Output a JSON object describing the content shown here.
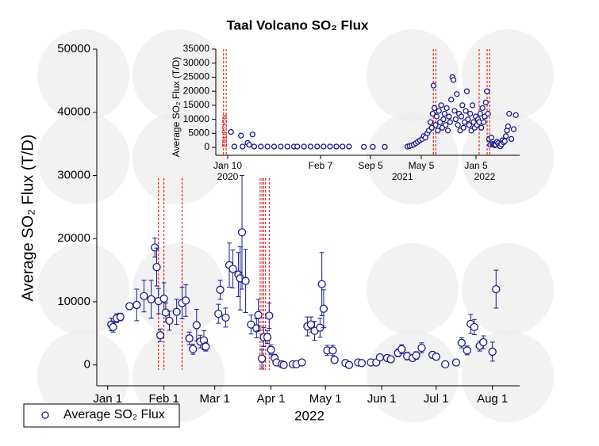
{
  "chart_data": [
    {
      "type": "scatter",
      "title": "Taal Volcano SO₂ Flux",
      "ylabel": "Average SO₂ Flux (T/D)",
      "xlabel": "2022",
      "x": [
        2,
        3,
        5,
        7,
        12,
        16,
        20,
        24,
        26,
        27,
        28,
        29,
        31,
        32,
        34,
        38,
        41,
        43,
        45,
        47,
        49,
        51,
        53,
        54,
        61,
        62,
        65,
        67,
        69,
        72,
        73,
        74,
        76,
        79,
        82,
        83,
        85,
        86,
        88,
        89,
        90,
        92,
        93,
        96,
        97,
        102,
        104,
        107,
        110,
        112,
        114,
        117,
        118,
        119,
        121,
        124,
        125,
        131,
        133,
        138,
        140,
        145,
        148,
        150,
        154,
        156,
        160,
        162,
        165,
        168,
        170,
        173,
        179,
        181,
        186,
        192,
        195,
        198,
        200,
        202,
        205,
        207,
        212,
        214
      ],
      "series": [
        {
          "name": "Average SO₂ Flux",
          "color": "#1a1a8c",
          "values": [
            6400,
            6000,
            7400,
            7600,
            9300,
            9500,
            10900,
            10400,
            18600,
            15500,
            10100,
            4700,
            10500,
            8300,
            7000,
            8400,
            9800,
            10200,
            4200,
            2500,
            6300,
            3700,
            3900,
            2900,
            8100,
            11900,
            7500,
            15800,
            15200,
            14300,
            13700,
            21000,
            13300,
            6400,
            5800,
            7900,
            1000,
            4400,
            4400,
            7800,
            2400,
            1100,
            400,
            100,
            0,
            100,
            100,
            400,
            6100,
            6400,
            5400,
            5900,
            12800,
            8900,
            2300,
            2300,
            800,
            300,
            0,
            400,
            300,
            400,
            400,
            1200,
            1100,
            900,
            1900,
            2500,
            1400,
            1100,
            1500,
            2700,
            1600,
            1300,
            100,
            400,
            3500,
            2300,
            6500,
            6000,
            3000,
            3600,
            2100,
            12000
          ],
          "errors": [
            1000,
            800,
            700,
            600,
            500,
            2500,
            2500,
            3000,
            1500,
            3000,
            2000,
            1000,
            2500,
            1500,
            1500,
            2000,
            2500,
            2500,
            1000,
            800,
            2500,
            1000,
            1500,
            700,
            1500,
            1500,
            1500,
            3500,
            3000,
            3500,
            5000,
            9000,
            5000,
            1500,
            1500,
            2500,
            1500,
            1500,
            1000,
            2000,
            800,
            600,
            300,
            300,
            300,
            300,
            300,
            400,
            1500,
            1200,
            1500,
            1500,
            5000,
            3000,
            800,
            800,
            500,
            300,
            300,
            300,
            300,
            300,
            400,
            500,
            500,
            500,
            600,
            700,
            600,
            500,
            600,
            800,
            500,
            500,
            300,
            300,
            800,
            700,
            1500,
            1200,
            800,
            1000,
            1500,
            3000
          ]
        }
      ],
      "xlim": [
        -6,
        227
      ],
      "xticks": [
        {
          "value": 0,
          "label": "Jan 1"
        },
        {
          "value": 31,
          "label": "Feb 1"
        },
        {
          "value": 59,
          "label": "Mar 1"
        },
        {
          "value": 90,
          "label": "Apr 1"
        },
        {
          "value": 120,
          "label": "May 1"
        },
        {
          "value": 151,
          "label": "Jun 1"
        },
        {
          "value": 181,
          "label": "Jul 1"
        },
        {
          "value": 212,
          "label": "Aug 1"
        }
      ],
      "ylim": [
        -3300,
        50000
      ],
      "yticks": [
        0,
        10000,
        20000,
        30000,
        40000,
        50000
      ],
      "vlines": {
        "color": "#e00000",
        "x": [
          28,
          31,
          41,
          84,
          85,
          86,
          87,
          89
        ]
      },
      "legend": "bottom-left"
    },
    {
      "type": "scatter",
      "ylabel": "Average SO₂ Flux (T/D)",
      "annotation": "ERUPTION",
      "color": "#1a1a8c",
      "x": [
        1,
        2,
        4,
        4.5,
        6,
        6.5,
        7.5,
        8,
        10,
        12,
        14,
        16,
        18,
        20,
        21,
        23,
        25,
        27,
        41,
        68,
        95,
        121,
        148,
        211,
        250,
        307,
        415,
        425,
        435,
        445,
        455,
        465,
        475,
        485,
        492,
        500,
        508,
        515,
        522,
        528,
        532,
        536,
        540,
        545,
        550,
        555,
        560,
        565,
        570,
        575,
        580,
        585,
        590,
        595,
        600,
        605,
        610,
        615,
        620,
        625,
        630,
        635,
        640,
        645,
        650,
        655,
        660,
        665,
        670,
        675,
        680,
        685,
        690,
        695,
        700,
        705,
        710,
        715,
        720,
        725,
        730,
        735,
        740,
        745,
        750,
        755,
        760,
        765,
        770,
        775,
        780,
        785,
        790,
        795,
        800,
        805,
        810,
        815,
        820,
        825,
        830,
        835,
        840,
        845,
        850,
        855,
        860,
        865,
        870,
        875,
        885,
        895,
        905
      ],
      "values": [
        5500,
        300,
        4200,
        300,
        1600,
        900,
        4600,
        300,
        300,
        300,
        300,
        300,
        300,
        300,
        300,
        300,
        300,
        300,
        300,
        300,
        300,
        300,
        300,
        200,
        200,
        200,
        300,
        500,
        700,
        1000,
        1500,
        2000,
        2500,
        3000,
        4000,
        3500,
        5000,
        6000,
        9000,
        7000,
        12000,
        22000,
        14000,
        8000,
        11000,
        6000,
        13000,
        9000,
        15000,
        7000,
        10000,
        12000,
        8000,
        14000,
        6000,
        11000,
        9000,
        17000,
        25000,
        24000,
        13000,
        10000,
        19000,
        8000,
        12000,
        6000,
        11000,
        15000,
        7000,
        9000,
        13000,
        20000,
        10000,
        8000,
        12000,
        6000,
        15000,
        9000,
        7000,
        11000,
        8000,
        10000,
        9000,
        12000,
        7000,
        14000,
        9000,
        11000,
        16000,
        20000,
        12000,
        3000,
        1000,
        3500,
        1200,
        900,
        700,
        1000,
        2000,
        1500,
        800,
        400,
        1100,
        2500,
        1800,
        2200,
        4000,
        6000,
        7500,
        12000,
        3000,
        6500,
        11500
      ],
      "xlim": [
        -4,
        922
      ],
      "xticks": [
        {
          "value": 0,
          "label": "Jan 10"
        },
        {
          "value": 28,
          "label": "Feb 7"
        },
        {
          "value": 239,
          "label": "Sep 5"
        },
        {
          "value": 481,
          "label": "May 5"
        },
        {
          "value": 726,
          "label": "Jan 5"
        }
      ],
      "xticks2": [
        {
          "value": 0,
          "label": "2020"
        },
        {
          "value": 391,
          "label": "2021"
        },
        {
          "value": 765,
          "label": "2022"
        }
      ],
      "ylim": [
        -2800,
        35000
      ],
      "yticks": [
        0,
        5000,
        10000,
        15000,
        20000,
        25000,
        30000,
        35000
      ],
      "vlines": {
        "color": "#e00000",
        "x": [
          -1.4,
          -0.5,
          535,
          546,
          740,
          776,
          787
        ]
      }
    }
  ]
}
